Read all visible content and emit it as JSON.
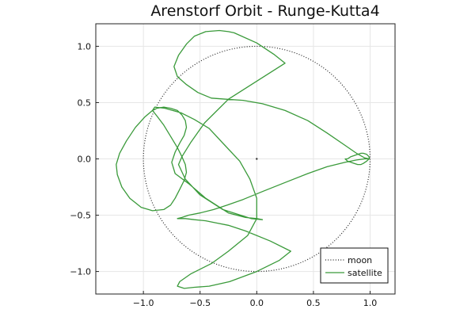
{
  "chart_data": {
    "type": "line",
    "title": "Arenstorf Orbit - Runge-Kutta4",
    "xlabel": "",
    "ylabel": "",
    "xlim": [
      -1.42,
      1.22
    ],
    "ylim": [
      -1.2,
      1.2
    ],
    "x_ticks": [
      -1.0,
      -0.5,
      0.0,
      0.5,
      1.0
    ],
    "x_tick_labels": [
      "−1.0",
      "−0.5",
      "0.0",
      "0.5",
      "1.0"
    ],
    "y_ticks": [
      -1.0,
      -0.5,
      0.0,
      0.5,
      1.0
    ],
    "y_tick_labels": [
      "−1.0",
      "−0.5",
      "0.0",
      "0.5",
      "1.0"
    ],
    "grid": true,
    "legend_position": "bottom-right",
    "series": [
      {
        "name": "moon",
        "style": "dotted",
        "color": "#222222",
        "shape": "circle",
        "center": [
          0,
          0
        ],
        "radius": 1.0
      },
      {
        "name": "satellite",
        "style": "solid",
        "color": "#3a9a3a",
        "x": [
          0.994,
          0.95,
          0.88,
          0.78,
          0.62,
          0.45,
          0.25,
          0.05,
          -0.12,
          -0.27,
          -0.4,
          -0.52,
          -0.62,
          -0.7,
          -0.73,
          -0.69,
          -0.62,
          -0.55,
          -0.45,
          -0.33,
          -0.25,
          -0.2,
          0.0,
          0.15,
          0.25,
          -0.25,
          -0.46,
          -0.58,
          -0.66,
          -0.69,
          -0.63,
          -0.5,
          -0.3,
          -0.05,
          0.05,
          0.0,
          -0.1,
          -0.25,
          -0.45,
          -0.6,
          -0.72,
          -0.75,
          -0.72,
          -0.68,
          -0.64,
          -0.62,
          -0.63,
          -0.66,
          -0.7,
          -0.76,
          -0.82,
          -0.88,
          -0.92,
          -0.99,
          -1.07,
          -1.15,
          -1.21,
          -1.24,
          -1.23,
          -1.19,
          -1.12,
          -1.02,
          -0.92,
          -0.82,
          -0.76,
          -0.72,
          -0.68,
          -0.64,
          -0.62,
          -0.63,
          -0.66,
          -0.7,
          -0.76,
          -0.82,
          -0.88,
          -0.92,
          -0.9,
          -0.81,
          -0.67,
          -0.55,
          -0.42,
          -0.28,
          -0.15,
          -0.06,
          0.0,
          0.0,
          -0.08,
          -0.25,
          -0.4,
          -0.58,
          -0.68,
          -0.7,
          -0.64,
          -0.55,
          -0.42,
          -0.24,
          0.0,
          0.2,
          0.3,
          0.12,
          -0.1,
          -0.25,
          -0.35,
          -0.45,
          -0.55,
          -0.63,
          -0.68,
          -0.7,
          -0.66,
          -0.6,
          -0.5,
          -0.38,
          -0.26,
          -0.12,
          0.05,
          0.25,
          0.45,
          0.62,
          0.78,
          0.88,
          0.95,
          0.994,
          0.99,
          0.97,
          0.94,
          0.92,
          0.89,
          0.86,
          0.83,
          0.8,
          0.78,
          0.8,
          0.83,
          0.86,
          0.89,
          0.92,
          0.94,
          0.97,
          0.99,
          0.994
        ],
        "y": [
          0.0,
          0.01,
          0.05,
          0.12,
          0.23,
          0.34,
          0.43,
          0.49,
          0.52,
          0.53,
          0.54,
          0.59,
          0.66,
          0.73,
          0.82,
          0.92,
          1.02,
          1.09,
          1.13,
          1.14,
          1.13,
          1.12,
          1.03,
          0.93,
          0.85,
          0.53,
          0.32,
          0.15,
          0.02,
          -0.05,
          -0.18,
          -0.32,
          -0.45,
          -0.53,
          -0.54,
          -0.53,
          -0.52,
          -0.48,
          -0.35,
          -0.22,
          -0.13,
          -0.03,
          0.06,
          0.14,
          0.21,
          0.28,
          0.34,
          0.39,
          0.43,
          0.45,
          0.46,
          0.45,
          0.43,
          0.37,
          0.28,
          0.16,
          0.05,
          -0.05,
          -0.14,
          -0.25,
          -0.35,
          -0.43,
          -0.46,
          -0.45,
          -0.41,
          -0.35,
          -0.27,
          -0.19,
          -0.12,
          -0.05,
          0.02,
          0.1,
          0.2,
          0.3,
          0.38,
          0.43,
          0.46,
          0.45,
          0.41,
          0.35,
          0.27,
          0.12,
          -0.02,
          -0.18,
          -0.35,
          -0.53,
          -0.68,
          -0.82,
          -0.93,
          -1.02,
          -1.09,
          -1.13,
          -1.15,
          -1.14,
          -1.13,
          -1.09,
          -1.0,
          -0.9,
          -0.82,
          -0.73,
          -0.64,
          -0.59,
          -0.57,
          -0.55,
          -0.54,
          -0.53,
          -0.53,
          -0.53,
          -0.52,
          -0.5,
          -0.48,
          -0.45,
          -0.41,
          -0.36,
          -0.29,
          -0.21,
          -0.13,
          -0.07,
          -0.03,
          -0.01,
          0.0,
          0.0,
          0.02,
          0.04,
          0.05,
          0.05,
          0.04,
          0.03,
          0.02,
          0.0,
          0.0,
          -0.02,
          -0.03,
          -0.04,
          -0.05,
          -0.05,
          -0.04,
          -0.02,
          0.0,
          0.0
        ]
      }
    ],
    "extra_points": [
      {
        "name": "earth",
        "x": 0.0,
        "y": 0.0
      }
    ]
  },
  "legend": {
    "items": [
      {
        "label": "moon"
      },
      {
        "label": "satellite"
      }
    ]
  }
}
